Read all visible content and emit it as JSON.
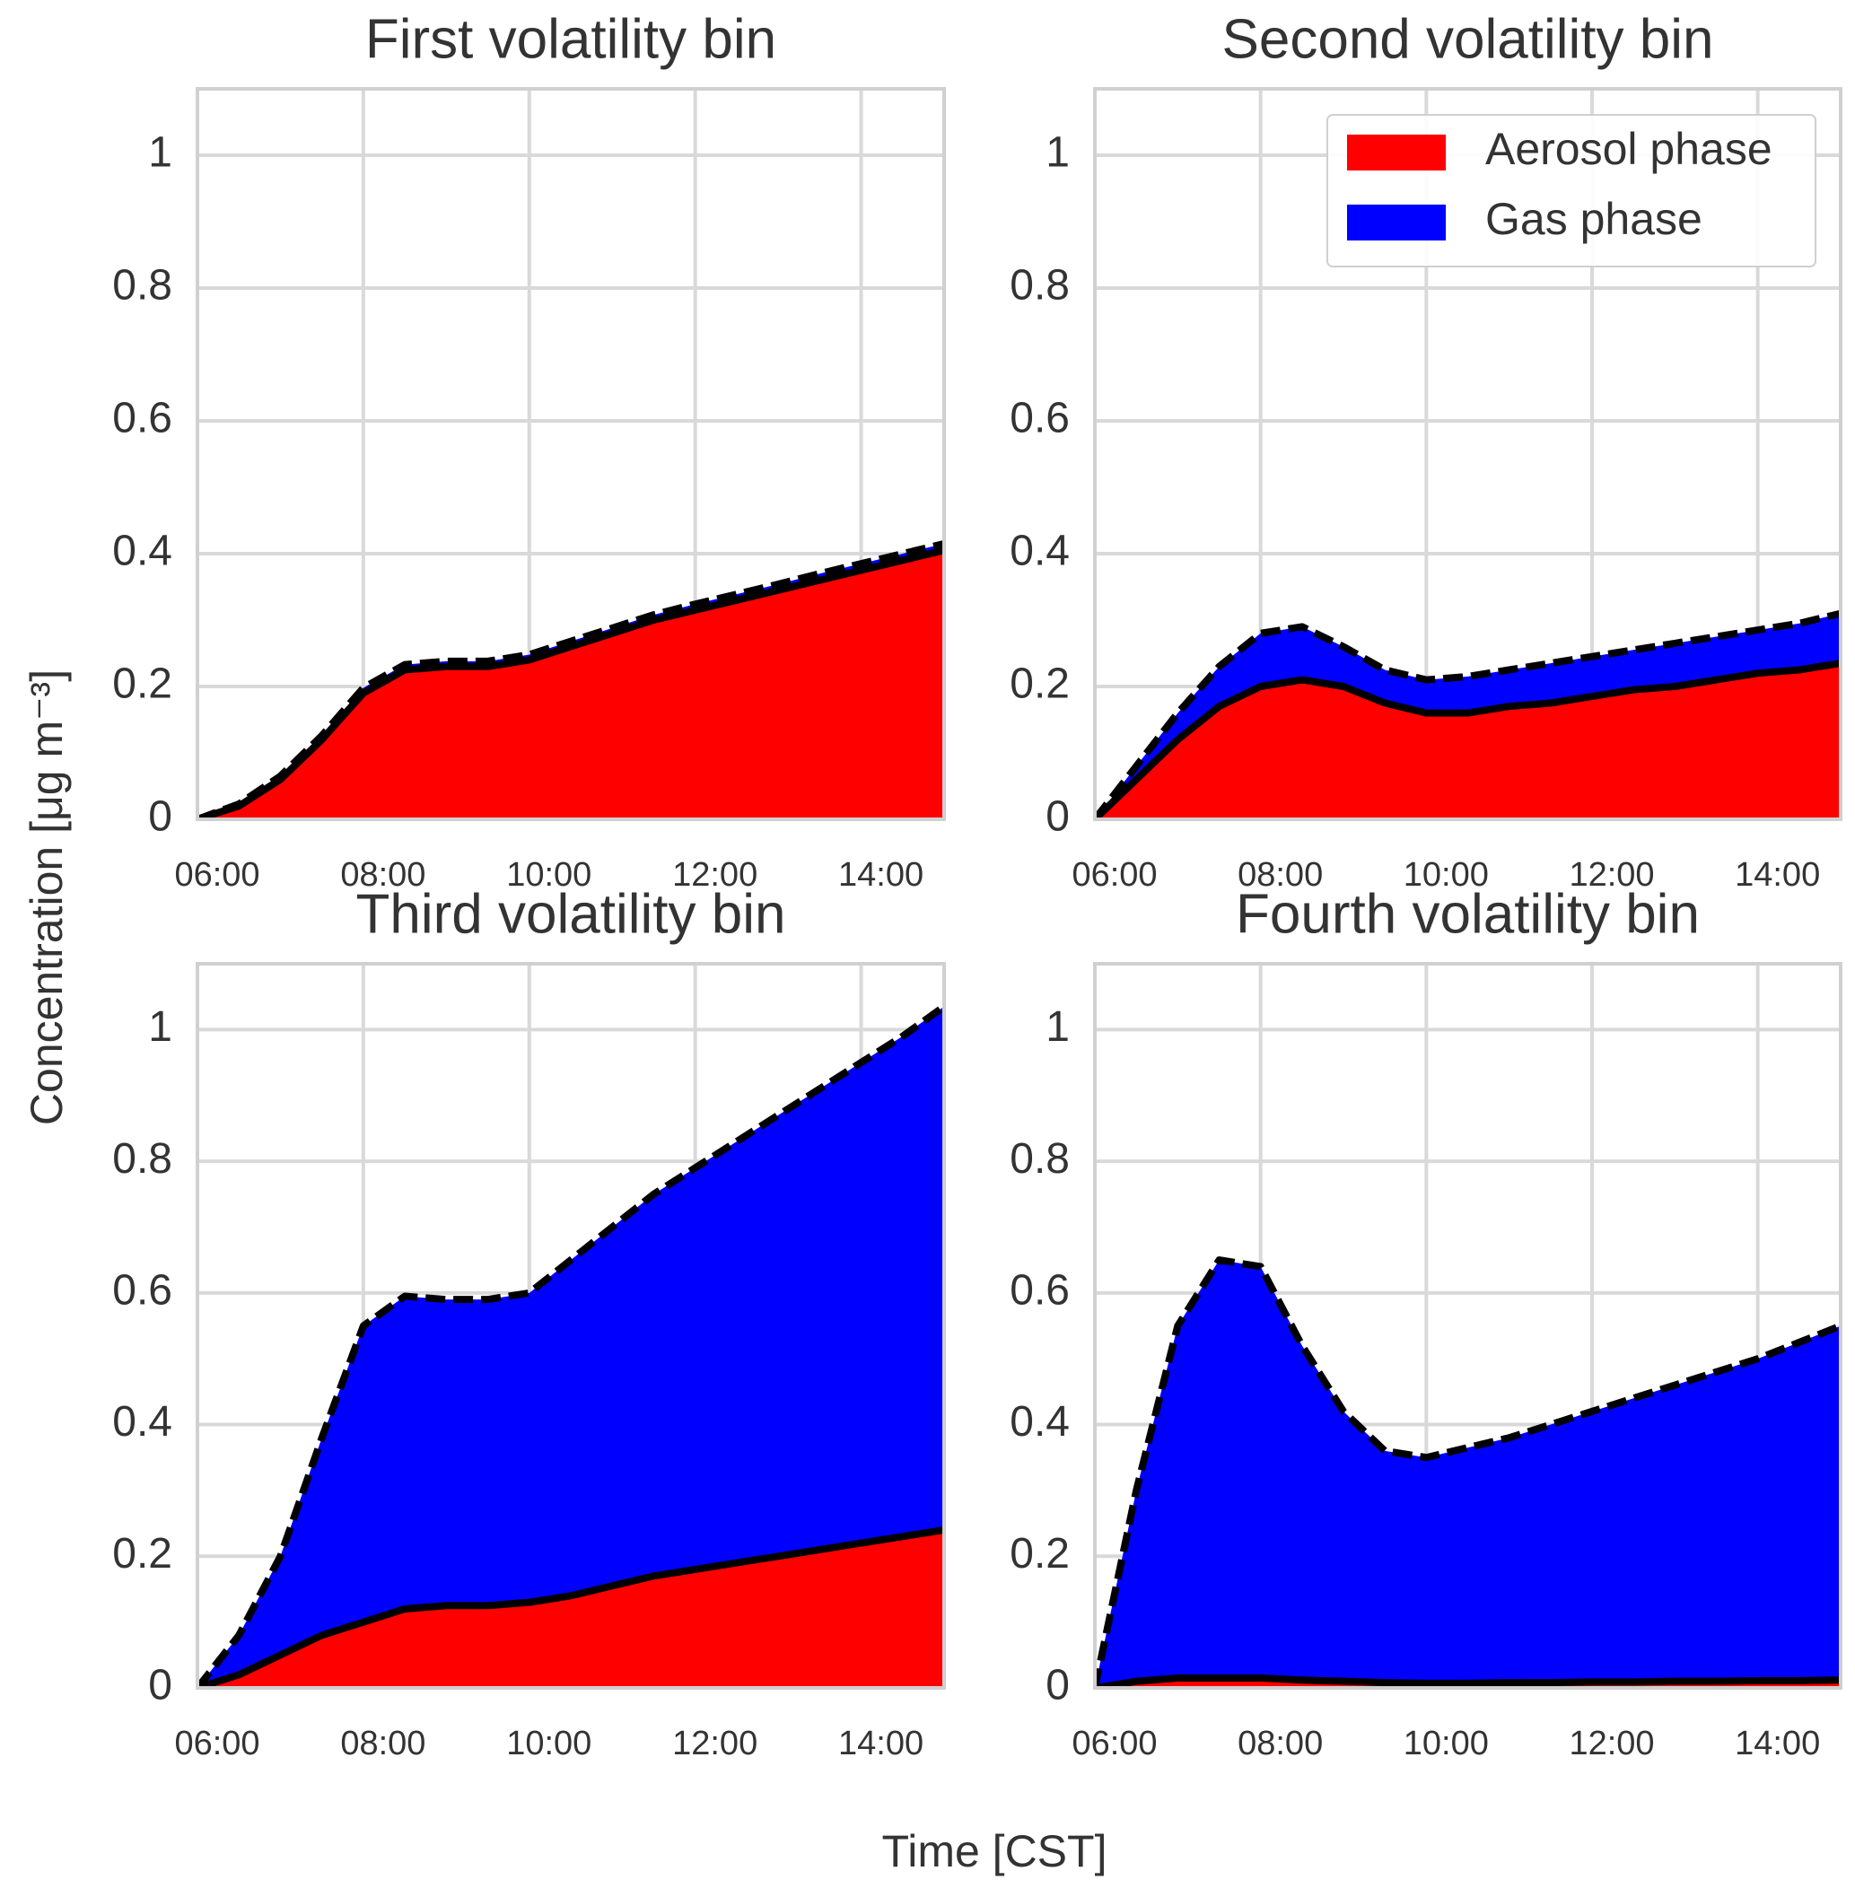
{
  "x_label": "Time [CST]",
  "y_label": "Concentration [μg m⁻³]",
  "chart_data": [
    {
      "type": "stacked_area",
      "title": "First volatility bin",
      "x": [
        "06:00",
        "06:30",
        "07:00",
        "07:30",
        "08:00",
        "08:30",
        "09:00",
        "09:30",
        "10:00",
        "10:30",
        "11:00",
        "11:30",
        "12:00",
        "12:30",
        "13:00",
        "13:30",
        "14:00",
        "14:30",
        "15:00"
      ],
      "series": [
        {
          "color": "#ff0000",
          "values": [
            0,
            0.02,
            0.06,
            0.12,
            0.19,
            0.225,
            0.23,
            0.23,
            0.24,
            0.26,
            0.28,
            0.3,
            0.315,
            0.33,
            0.345,
            0.36,
            0.375,
            0.39,
            0.405
          ]
        },
        {
          "color": "#0000ff",
          "values": [
            0,
            0.003,
            0.005,
            0.006,
            0.008,
            0.008,
            0.008,
            0.008,
            0.008,
            0.008,
            0.008,
            0.008,
            0.009,
            0.009,
            0.009,
            0.01,
            0.01,
            0.01,
            0.01
          ]
        }
      ],
      "xlim": [
        "06:00",
        "15:00"
      ],
      "xticks": [
        "06:00",
        "08:00",
        "10:00",
        "12:00",
        "14:00"
      ],
      "ylim": [
        0,
        1.1
      ],
      "yticks": [
        0.0,
        0.2,
        0.4,
        0.6,
        0.8,
        1.0
      ],
      "grid": true
    },
    {
      "type": "stacked_area",
      "title": "Second volatility bin",
      "x": [
        "06:00",
        "06:30",
        "07:00",
        "07:30",
        "08:00",
        "08:30",
        "09:00",
        "09:30",
        "10:00",
        "10:30",
        "11:00",
        "11:30",
        "12:00",
        "12:30",
        "13:00",
        "13:30",
        "14:00",
        "14:30",
        "15:00"
      ],
      "series": [
        {
          "name": "Aerosol phase",
          "color": "#ff0000",
          "values": [
            0,
            0.06,
            0.12,
            0.17,
            0.2,
            0.21,
            0.2,
            0.175,
            0.16,
            0.16,
            0.17,
            0.175,
            0.185,
            0.195,
            0.2,
            0.21,
            0.22,
            0.225,
            0.235
          ]
        },
        {
          "name": "Gas phase",
          "color": "#0000ff",
          "values": [
            0,
            0.02,
            0.04,
            0.06,
            0.08,
            0.08,
            0.06,
            0.05,
            0.05,
            0.055,
            0.055,
            0.06,
            0.06,
            0.06,
            0.065,
            0.065,
            0.065,
            0.07,
            0.075
          ]
        }
      ],
      "xlim": [
        "06:00",
        "15:00"
      ],
      "xticks": [
        "06:00",
        "08:00",
        "10:00",
        "12:00",
        "14:00"
      ],
      "ylim": [
        0,
        1.1
      ],
      "yticks": [
        0.0,
        0.2,
        0.4,
        0.6,
        0.8,
        1.0
      ],
      "grid": true,
      "legend": "upper right"
    },
    {
      "type": "stacked_area",
      "title": "Third volatility bin",
      "x": [
        "06:00",
        "06:30",
        "07:00",
        "07:30",
        "08:00",
        "08:30",
        "09:00",
        "09:30",
        "10:00",
        "10:30",
        "11:00",
        "11:30",
        "12:00",
        "12:30",
        "13:00",
        "13:30",
        "14:00",
        "14:30",
        "15:00"
      ],
      "series": [
        {
          "color": "#ff0000",
          "values": [
            0,
            0.02,
            0.05,
            0.08,
            0.1,
            0.12,
            0.125,
            0.125,
            0.13,
            0.14,
            0.155,
            0.17,
            0.18,
            0.19,
            0.2,
            0.21,
            0.22,
            0.23,
            0.24
          ]
        },
        {
          "color": "#0000ff",
          "values": [
            0,
            0.06,
            0.15,
            0.3,
            0.45,
            0.475,
            0.465,
            0.465,
            0.47,
            0.51,
            0.545,
            0.58,
            0.61,
            0.64,
            0.67,
            0.7,
            0.73,
            0.76,
            0.795
          ]
        }
      ],
      "xlim": [
        "06:00",
        "15:00"
      ],
      "xticks": [
        "06:00",
        "08:00",
        "10:00",
        "12:00",
        "14:00"
      ],
      "ylim": [
        0,
        1.1
      ],
      "yticks": [
        0.0,
        0.2,
        0.4,
        0.6,
        0.8,
        1.0
      ],
      "grid": true
    },
    {
      "type": "stacked_area",
      "title": "Fourth volatility bin",
      "x": [
        "06:00",
        "06:30",
        "07:00",
        "07:30",
        "08:00",
        "08:30",
        "09:00",
        "09:30",
        "10:00",
        "10:30",
        "11:00",
        "11:30",
        "12:00",
        "12:30",
        "13:00",
        "13:30",
        "14:00",
        "14:30",
        "15:00"
      ],
      "series": [
        {
          "color": "#ff0000",
          "values": [
            0,
            0.01,
            0.015,
            0.015,
            0.015,
            0.012,
            0.01,
            0.008,
            0.007,
            0.007,
            0.008,
            0.008,
            0.009,
            0.009,
            0.01,
            0.01,
            0.011,
            0.011,
            0.012
          ]
        },
        {
          "color": "#0000ff",
          "values": [
            0,
            0.29,
            0.535,
            0.635,
            0.625,
            0.508,
            0.41,
            0.352,
            0.343,
            0.358,
            0.372,
            0.392,
            0.411,
            0.431,
            0.45,
            0.47,
            0.489,
            0.514,
            0.538
          ]
        }
      ],
      "xlim": [
        "06:00",
        "15:00"
      ],
      "xticks": [
        "06:00",
        "08:00",
        "10:00",
        "12:00",
        "14:00"
      ],
      "ylim": [
        0,
        1.1
      ],
      "yticks": [
        0.0,
        0.2,
        0.4,
        0.6,
        0.8,
        1.0
      ],
      "grid": true
    }
  ]
}
